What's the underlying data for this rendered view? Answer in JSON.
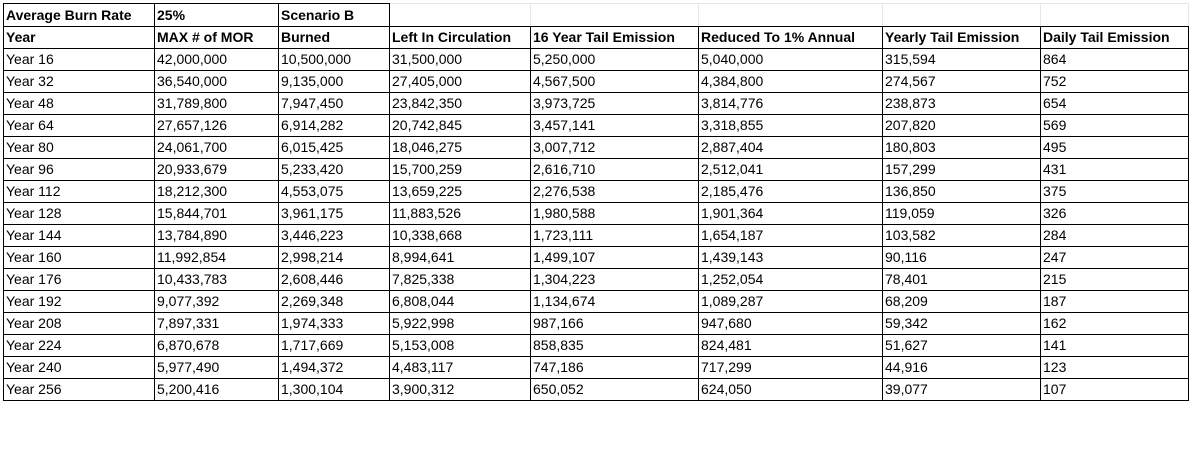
{
  "top_row": {
    "label": "Average Burn Rate",
    "rate": "25%",
    "scenario": "Scenario B"
  },
  "headers": {
    "year": "Year",
    "max_mor": "MAX # of MOR",
    "burned": "Burned",
    "left": "Left In Circulation",
    "tail16": "16 Year Tail Emission",
    "reduced": "Reduced To 1% Annual",
    "yearly": "Yearly Tail Emission",
    "daily": "Daily Tail Emission"
  },
  "rows": [
    {
      "year": "Year 16",
      "max_mor": "42,000,000",
      "burned": "10,500,000",
      "left": "31,500,000",
      "tail16": "5,250,000",
      "reduced": "5,040,000",
      "yearly": "315,594",
      "daily": "864"
    },
    {
      "year": "Year 32",
      "max_mor": "36,540,000",
      "burned": "9,135,000",
      "left": "27,405,000",
      "tail16": "4,567,500",
      "reduced": "4,384,800",
      "yearly": "274,567",
      "daily": "752"
    },
    {
      "year": "Year 48",
      "max_mor": "31,789,800",
      "burned": "7,947,450",
      "left": "23,842,350",
      "tail16": "3,973,725",
      "reduced": "3,814,776",
      "yearly": "238,873",
      "daily": "654"
    },
    {
      "year": "Year 64",
      "max_mor": "27,657,126",
      "burned": "6,914,282",
      "left": "20,742,845",
      "tail16": "3,457,141",
      "reduced": "3,318,855",
      "yearly": "207,820",
      "daily": "569"
    },
    {
      "year": "Year 80",
      "max_mor": "24,061,700",
      "burned": "6,015,425",
      "left": "18,046,275",
      "tail16": "3,007,712",
      "reduced": "2,887,404",
      "yearly": "180,803",
      "daily": "495"
    },
    {
      "year": "Year 96",
      "max_mor": "20,933,679",
      "burned": "5,233,420",
      "left": "15,700,259",
      "tail16": "2,616,710",
      "reduced": "2,512,041",
      "yearly": "157,299",
      "daily": "431"
    },
    {
      "year": "Year 112",
      "max_mor": "18,212,300",
      "burned": "4,553,075",
      "left": "13,659,225",
      "tail16": "2,276,538",
      "reduced": "2,185,476",
      "yearly": "136,850",
      "daily": "375"
    },
    {
      "year": "Year 128",
      "max_mor": "15,844,701",
      "burned": "3,961,175",
      "left": "11,883,526",
      "tail16": "1,980,588",
      "reduced": "1,901,364",
      "yearly": "119,059",
      "daily": "326"
    },
    {
      "year": "Year 144",
      "max_mor": "13,784,890",
      "burned": "3,446,223",
      "left": "10,338,668",
      "tail16": "1,723,111",
      "reduced": "1,654,187",
      "yearly": "103,582",
      "daily": "284"
    },
    {
      "year": "Year 160",
      "max_mor": "11,992,854",
      "burned": "2,998,214",
      "left": "8,994,641",
      "tail16": "1,499,107",
      "reduced": "1,439,143",
      "yearly": "90,116",
      "daily": "247"
    },
    {
      "year": "Year 176",
      "max_mor": "10,433,783",
      "burned": "2,608,446",
      "left": "7,825,338",
      "tail16": "1,304,223",
      "reduced": "1,252,054",
      "yearly": "78,401",
      "daily": "215"
    },
    {
      "year": "Year 192",
      "max_mor": "9,077,392",
      "burned": "2,269,348",
      "left": "6,808,044",
      "tail16": "1,134,674",
      "reduced": "1,089,287",
      "yearly": "68,209",
      "daily": "187"
    },
    {
      "year": "Year 208",
      "max_mor": "7,897,331",
      "burned": "1,974,333",
      "left": "5,922,998",
      "tail16": "987,166",
      "reduced": "947,680",
      "yearly": "59,342",
      "daily": "162"
    },
    {
      "year": "Year 224",
      "max_mor": "6,870,678",
      "burned": "1,717,669",
      "left": "5,153,008",
      "tail16": "858,835",
      "reduced": "824,481",
      "yearly": "51,627",
      "daily": "141"
    },
    {
      "year": "Year 240",
      "max_mor": "5,977,490",
      "burned": "1,494,372",
      "left": "4,483,117",
      "tail16": "747,186",
      "reduced": "717,299",
      "yearly": "44,916",
      "daily": "123"
    },
    {
      "year": "Year 256",
      "max_mor": "5,200,416",
      "burned": "1,300,104",
      "left": "3,900,312",
      "tail16": "650,052",
      "reduced": "624,050",
      "yearly": "39,077",
      "daily": "107"
    }
  ]
}
